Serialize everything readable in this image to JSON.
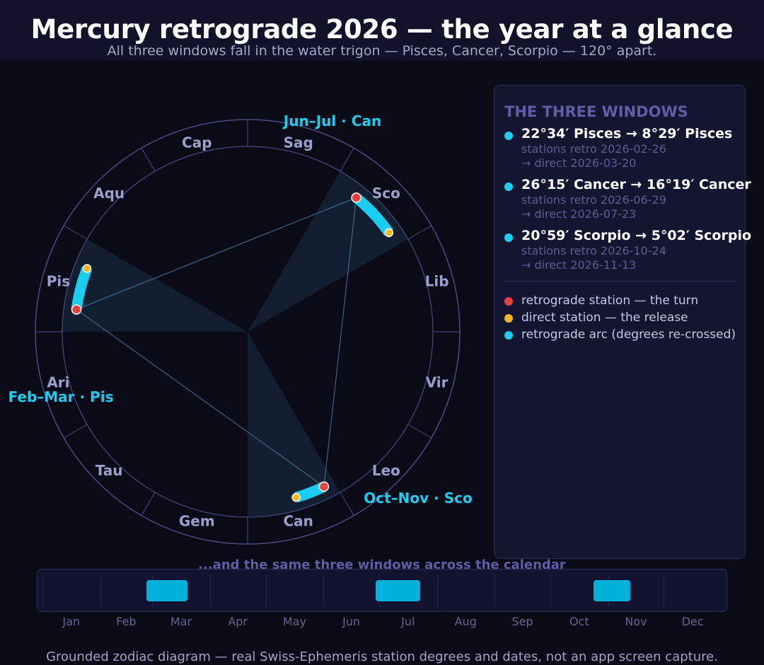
{
  "title": "Mercury retrograde 2026 — the year at a glance",
  "subtitle": "All three windows fall in the water trigon — Pisces, Cancer, Scorpio — 120° apart.",
  "wheel": {
    "signs": [
      "Ari",
      "Tau",
      "Gem",
      "Can",
      "Leo",
      "Vir",
      "Lib",
      "Sco",
      "Sag",
      "Cap",
      "Aqu",
      "Pis"
    ],
    "window_labels": [
      "Feb–Mar · Pis",
      "Jun–Jul · Can",
      "Oct–Nov · Sco"
    ],
    "retro_arcs": [
      {
        "start_lon": 352.57,
        "end_lon": 338.48
      },
      {
        "start_lon": 116.25,
        "end_lon": 106.32
      },
      {
        "start_lon": 230.98,
        "end_lon": 215.03
      }
    ]
  },
  "panel": {
    "heading": "THE THREE WINDOWS",
    "windows": [
      {
        "range": "22°34′ Pisces  →  8°29′ Pisces",
        "retro": "stations retro 2026-02-26",
        "direct": "→ direct 2026-03-20"
      },
      {
        "range": "26°15′ Cancer  →  16°19′ Cancer",
        "retro": "stations retro 2026-06-29",
        "direct": "→ direct 2026-07-23"
      },
      {
        "range": "20°59′ Scorpio  →  5°02′ Scorpio",
        "retro": "stations retro 2026-10-24",
        "direct": "→ direct 2026-11-13"
      }
    ],
    "legend": [
      {
        "label": "retrograde station — the turn",
        "color": "#e8413f"
      },
      {
        "label": "direct station — the release",
        "color": "#f2b81c"
      },
      {
        "label": "retrograde arc (degrees re-crossed)",
        "color": "#1ccdf2"
      }
    ]
  },
  "calendar": {
    "heading": "...and the same three windows across the calendar",
    "months": [
      "Jan",
      "Feb",
      "Mar",
      "Apr",
      "May",
      "Jun",
      "Jul",
      "Aug",
      "Sep",
      "Oct",
      "Nov",
      "Dec"
    ],
    "windows": [
      {
        "start": "2026-02-26",
        "end": "2026-03-20"
      },
      {
        "start": "2026-06-29",
        "end": "2026-07-23"
      },
      {
        "start": "2026-10-24",
        "end": "2026-11-13"
      }
    ]
  },
  "footer": "Grounded zodiac diagram — real Swiss-Ephemeris station degrees and dates, not an app screen capture.",
  "colors": {
    "arc": "#1ccdf2",
    "retro_station": "#e8413f",
    "direct_station": "#f2b81c",
    "ring": "#4b4a86",
    "sign_label": "#9aa0cc"
  }
}
